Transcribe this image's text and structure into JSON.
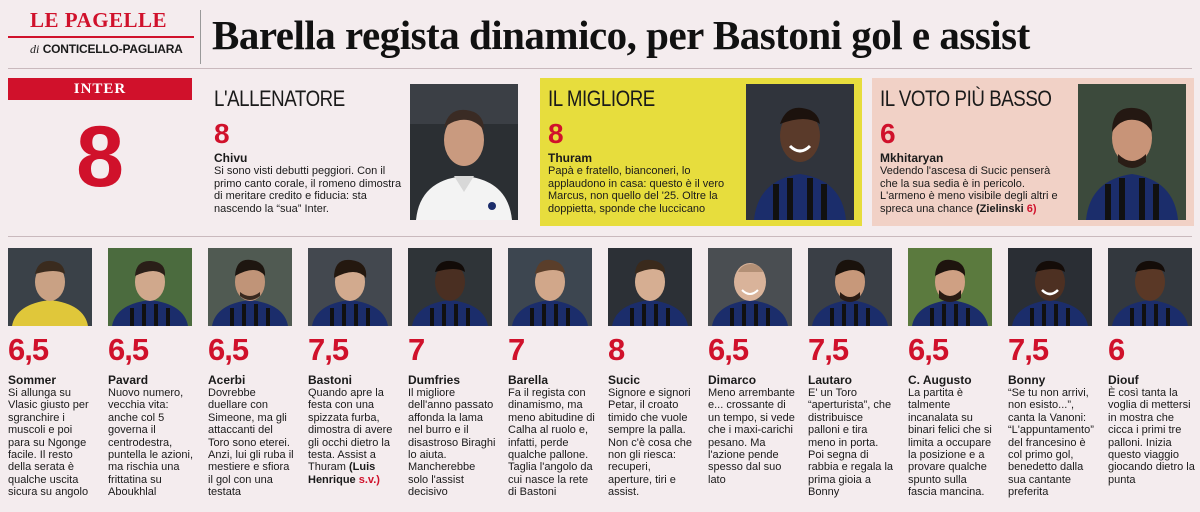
{
  "brand": {
    "title": "LE PAGELLE",
    "byline_prefix": "di",
    "byline_authors": "CONTICELLO-PAGLIARA"
  },
  "headline": "Barella regista dinamico, per Bastoni gol e assist",
  "team": {
    "label": "INTER",
    "score": "8"
  },
  "features": [
    {
      "label": "L'ALLENATORE",
      "score": "8",
      "name": "Chivu",
      "text": "Si sono visti debutti peggiori. Con il primo canto corale, il romeno dimostra di meritare credito e fiducia: sta nascendo la “sua” Inter."
    },
    {
      "label": "IL MIGLIORE",
      "score": "8",
      "name": "Thuram",
      "text": "Papà e fratello, bianconeri, lo applaudono in casa: questo è il vero Marcus, non quello del '25. Oltre la doppietta, sponde che luccicano"
    },
    {
      "label": "IL VOTO PIÙ BASSO",
      "score": "6",
      "name": "Mkhitaryan",
      "text": "Vedendo l'ascesa di Sucic penserà che la sua sedia è in pericolo. L'armeno è meno visibile degli altri e spreca una chance",
      "sub_name": "(Zielinski",
      "sub_score": "6)"
    }
  ],
  "players": [
    {
      "score": "6,5",
      "name": "Sommer",
      "text": "Si allunga su Vlasic giusto per sgranchire i muscoli e poi para su Ngonge facile. Il resto della serata è qualche uscita sicura su angolo"
    },
    {
      "score": "6,5",
      "name": "Pavard",
      "text": "Nuovo numero, vecchia vita: anche col 5 governa il centrodestra, puntella le azioni, ma rischia una frittatina su Aboukhlal"
    },
    {
      "score": "6,5",
      "name": "Acerbi",
      "text": "Dovrebbe duellare con Simeone, ma gli attaccanti del Toro sono eterei. Anzi, lui gli ruba il mestiere e sfiora il gol con una testata"
    },
    {
      "score": "7,5",
      "name": "Bastoni",
      "text": "Quando apre la festa con una spizzata furba, dimostra di avere gli occhi dietro la testa. Assist a Thuram",
      "sub_name": "(Luis Henrique",
      "sub_score": "s.v.)"
    },
    {
      "score": "7",
      "name": "Dumfries",
      "text": "Il migliore dell'anno passato affonda la lama nel burro e il disastroso Biraghi lo aiuta. Mancherebbe solo l'assist decisivo"
    },
    {
      "score": "7",
      "name": "Barella",
      "text": "Fa il regista con dinamismo, ma meno abitudine di Calha al ruolo e, infatti, perde qualche pallone. Taglia l'angolo da cui nasce la rete di Bastoni"
    },
    {
      "score": "8",
      "name": "Sucic",
      "text": "Signore e signori Petar, il croato timido che vuole sempre la palla. Non c'è cosa che non gli riesca: recuperi, aperture, tiri e assist."
    },
    {
      "score": "6,5",
      "name": "Dimarco",
      "text": "Meno arrembante e... crossante di un tempo, si vede che i maxi-carichi pesano. Ma l'azione pende spesso dal suo lato"
    },
    {
      "score": "7,5",
      "name": "Lautaro",
      "text": "E' un Toro “aperturista”, che distribuisce palloni e tira meno in porta. Poi segna di rabbia e regala la prima gioia a Bonny"
    },
    {
      "score": "6,5",
      "name": "C. Augusto",
      "text": "La partita è talmente incanalata su binari felici che si limita a occupare la posizione e a provare qualche spunto sulla fascia mancina."
    },
    {
      "score": "7,5",
      "name": "Bonny",
      "text": "“Se tu non arrivi, non esisto...”, canta la Vanoni: “L'appuntamento” del francesino è col primo gol, benedetto dalla sua cantante preferita"
    },
    {
      "score": "6",
      "name": "Diouf",
      "text": "È così tanta la voglia di mettersi in mostra che cicca i primi tre palloni. Inizia questo viaggio giocando dietro la punta"
    }
  ],
  "colors": {
    "accent_red": "#d0112b",
    "best_yellow": "#e7dd3d",
    "lowest_peach": "#f1d1c6",
    "page_bg": "#f4ecee",
    "kit_blue": "#1b2d6b",
    "kit_black": "#111111"
  }
}
